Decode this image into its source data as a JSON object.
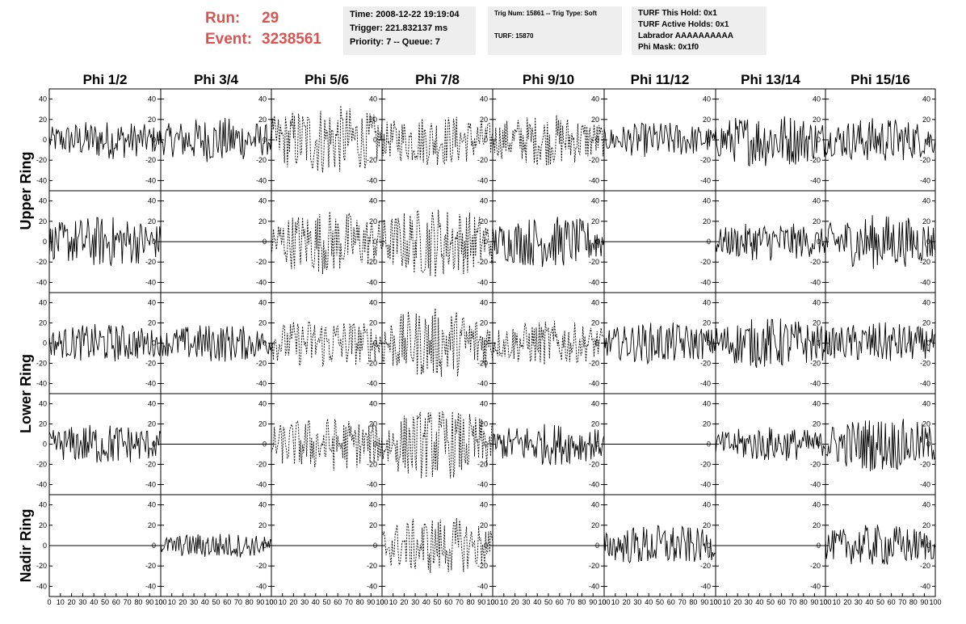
{
  "header": {
    "run_label": "Run:",
    "run_value": "29",
    "event_label": "Event:",
    "event_value": "3238561",
    "box1": [
      "Time: 2008-12-22 19:19:04",
      "Trigger: 221.832137 ms",
      "Priority: 7 -- Queue: 7"
    ],
    "box2": [
      "Trig Num: 15861 -- Trig Type: Soft",
      "",
      "TURF: 15870"
    ],
    "box3": [
      "TURF This Hold: 0x1",
      "TURF Active Holds: 0x1",
      "Labrador AAAAAAAAAA",
      "Phi Mask: 0x1f0"
    ]
  },
  "chart_data": {
    "type": "line",
    "columns": [
      "Phi 1/2",
      "Phi 3/4",
      "Phi 5/6",
      "Phi 7/8",
      "Phi 9/10",
      "Phi 11/12",
      "Phi 13/14",
      "Phi 15/16"
    ],
    "rings": [
      "Upper Ring",
      "Lower Ring",
      "Nadir Ring"
    ],
    "rows": [
      {
        "ring": "Upper Ring",
        "kinds": [
          "noise",
          "noise",
          "dash",
          "dash",
          "dash",
          "noise",
          "noise",
          "noise"
        ],
        "amps": [
          12,
          14,
          22,
          16,
          16,
          11,
          17,
          14
        ]
      },
      {
        "ring": "Upper Ring",
        "kinds": [
          "noise",
          "flat",
          "dash",
          "dash",
          "noise",
          "flat",
          "noise",
          "noise"
        ],
        "amps": [
          16,
          0,
          20,
          22,
          16,
          0,
          12,
          17
        ]
      },
      {
        "ring": "Lower Ring",
        "kinds": [
          "noise",
          "noise",
          "dash",
          "dash",
          "dash",
          "noise",
          "noise",
          "noise"
        ],
        "amps": [
          12,
          12,
          16,
          22,
          14,
          13,
          16,
          13
        ]
      },
      {
        "ring": "Lower Ring",
        "kinds": [
          "noise",
          "flat",
          "dash",
          "dash",
          "noise",
          "flat",
          "noise",
          "noise"
        ],
        "amps": [
          13,
          0,
          17,
          22,
          13,
          0,
          11,
          17
        ]
      },
      {
        "ring": "Nadir Ring",
        "kinds": [
          "flat",
          "noise",
          "flat",
          "dash",
          "flat",
          "noise",
          "flat",
          "noise"
        ],
        "amps": [
          0,
          8,
          0,
          18,
          0,
          13,
          0,
          13
        ]
      }
    ],
    "ylim": [
      -50,
      50
    ],
    "yticks": [
      -40,
      -20,
      0,
      20,
      40
    ],
    "xlim": [
      0,
      100
    ],
    "xtick_labels": [
      "0",
      "10",
      "20",
      "30",
      "40",
      "50",
      "60",
      "70",
      "80",
      "90",
      "100"
    ],
    "grid": false,
    "legend": "none"
  }
}
